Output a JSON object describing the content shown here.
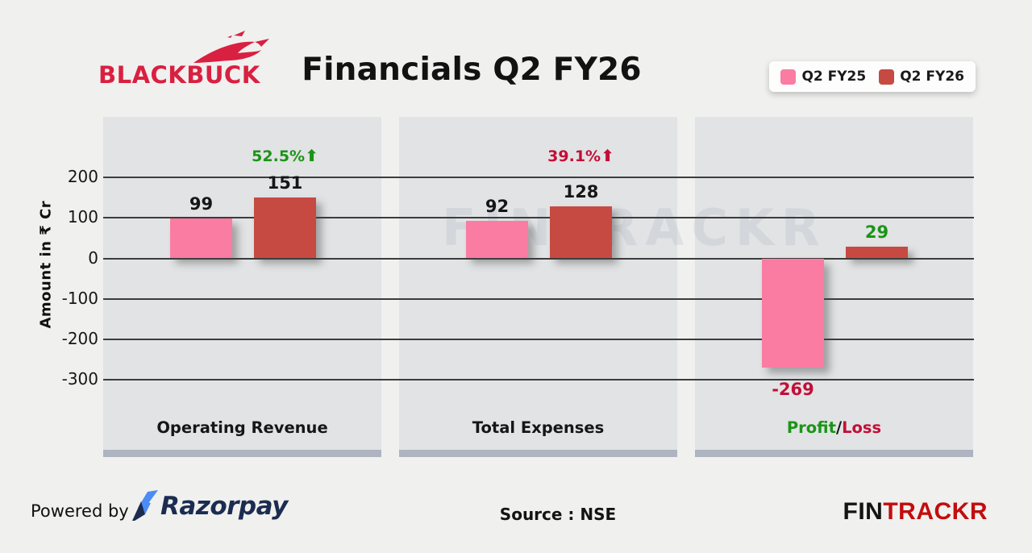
{
  "header": {
    "logo_text": "BLACKBUCK",
    "logo_color": "#D92040",
    "title": "Financials Q2 FY26",
    "legend": [
      {
        "label": "Q2 FY25",
        "color": "#FA7CA2"
      },
      {
        "label": "Q2 FY26",
        "color": "#C74A42"
      }
    ]
  },
  "chart_data": {
    "type": "bar",
    "title": "Financials Q2 FY26",
    "ylabel": "Amount in ₹ Cr",
    "ylim": [
      -300,
      200
    ],
    "yticks": [
      200,
      100,
      0,
      -100,
      -200,
      -300
    ],
    "grid": true,
    "legend_position": "top-right",
    "categories": [
      "Operating Revenue",
      "Total Expenses",
      "Profit/Loss"
    ],
    "series": [
      {
        "name": "Q2 FY25",
        "color": "#FA7CA2",
        "values": [
          99,
          92,
          -269
        ]
      },
      {
        "name": "Q2 FY26",
        "color": "#C74A42",
        "values": [
          151,
          128,
          29
        ]
      }
    ],
    "value_label_colors": [
      [
        "#161616",
        "#161616"
      ],
      [
        "#161616",
        "#161616"
      ],
      [
        "#C30E38",
        "#1B9418"
      ]
    ],
    "growth_labels": [
      {
        "text": "52.5%",
        "arrow": "⬆",
        "color": "#1B9418"
      },
      {
        "text": "39.1%",
        "arrow": "⬆",
        "color": "#C30E38"
      },
      null
    ],
    "category_rich_labels": [
      [
        {
          "text": "Operating Revenue",
          "color": "#161616"
        }
      ],
      [
        {
          "text": "Total Expenses",
          "color": "#161616"
        }
      ],
      [
        {
          "text": "Profit",
          "color": "#1B9418"
        },
        {
          "text": "/",
          "color": "#161616"
        },
        {
          "text": "Loss",
          "color": "#C30E38"
        }
      ]
    ]
  },
  "watermark": "FINTRACKR",
  "footer": {
    "powered_by": "Powered by",
    "razorpay": "Razorpay",
    "source": "Source : NSE",
    "fintrackr_fin": "FIN",
    "fintrackr_trackr": "TRACKR"
  }
}
